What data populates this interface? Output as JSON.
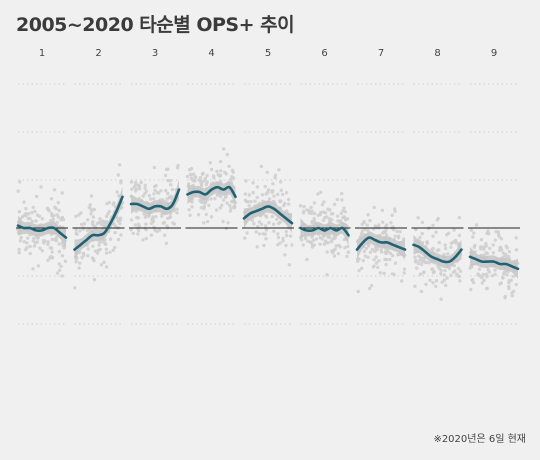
{
  "title": "2005~2020 타순별 OPS+ 추이",
  "footnote": "※2020년은 6일 현재",
  "colors": {
    "background": "#f0f0f0",
    "line": "#1f6273",
    "band": "#c6c6c6",
    "dots": "#cfcfcf",
    "baseline": "#222222",
    "grid": "#d0d0d0"
  },
  "chart_data": {
    "type": "line",
    "facets": [
      "1",
      "2",
      "3",
      "4",
      "5",
      "6",
      "7",
      "8",
      "9"
    ],
    "baseline": 100,
    "ylim": [
      20,
      170
    ],
    "gridlines": [
      60,
      80,
      100,
      120,
      140,
      160
    ],
    "grid": true,
    "legend": "none",
    "series": [
      {
        "facet": "1",
        "values": [
          101,
          100,
          100,
          99,
          99,
          100,
          100,
          98,
          96
        ]
      },
      {
        "facet": "2",
        "values": [
          91,
          93,
          95,
          97,
          97,
          98,
          102,
          107,
          113
        ]
      },
      {
        "facet": "3",
        "values": [
          110,
          110,
          109,
          108,
          109,
          109,
          108,
          110,
          116
        ]
      },
      {
        "facet": "4",
        "values": [
          114,
          115,
          115,
          114,
          116,
          117,
          116,
          117,
          113
        ]
      },
      {
        "facet": "5",
        "values": [
          104,
          106,
          107,
          108,
          109,
          108,
          106,
          104,
          102
        ]
      },
      {
        "facet": "6",
        "values": [
          100,
          99,
          99,
          100,
          99,
          100,
          99,
          100,
          97
        ]
      },
      {
        "facet": "7",
        "values": [
          91,
          94,
          96,
          95,
          94,
          94,
          93,
          92,
          91
        ]
      },
      {
        "facet": "8",
        "values": [
          93,
          92,
          90,
          88,
          87,
          86,
          86,
          88,
          91
        ]
      },
      {
        "facet": "9",
        "values": [
          88,
          87,
          86,
          86,
          86,
          85,
          85,
          84,
          83
        ]
      }
    ]
  }
}
